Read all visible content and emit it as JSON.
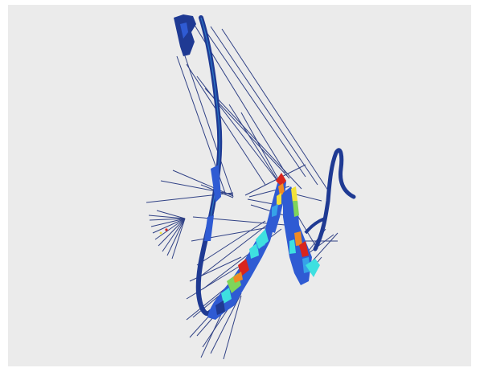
{
  "figure": {
    "background": "#ebebeb",
    "colors": {
      "surface_dark": "#1f3a93",
      "surface_mid": "#2f5bd3",
      "cool": "#36a2e8",
      "cyan": "#3ee0e0",
      "green": "#7fd45a",
      "yellow": "#f3e23a",
      "orange": "#f08a24",
      "red": "#d8251e",
      "ray": "#1c2f7a"
    }
  }
}
